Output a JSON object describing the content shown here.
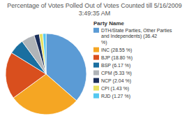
{
  "chart_data": {
    "type": "pie",
    "title": "Percentage of Votes Polled Out of Votes Counted till 5/16/2009 3:49:35 AM",
    "categories": [
      "DTH/State Parties, Other Parties\nand Independents) (36.42\n%)",
      "INC (28.55 %)",
      "BJP (18.80 %)",
      "BSP (6.17 %)",
      "CPM (5.33 %)",
      "NCP (2.04 %)",
      "CPI (1.43 %)",
      "RJD (1.27 %)"
    ],
    "values": [
      36.42,
      28.55,
      18.8,
      6.17,
      5.33,
      2.04,
      1.43,
      1.27
    ],
    "colors": [
      "#5b9bd5",
      "#f5a623",
      "#d94f1e",
      "#1a6fa0",
      "#b0b4b8",
      "#1a2e5a",
      "#e8e060",
      "#55c8f0"
    ],
    "legend_title": "Party Name",
    "legend": "right"
  }
}
